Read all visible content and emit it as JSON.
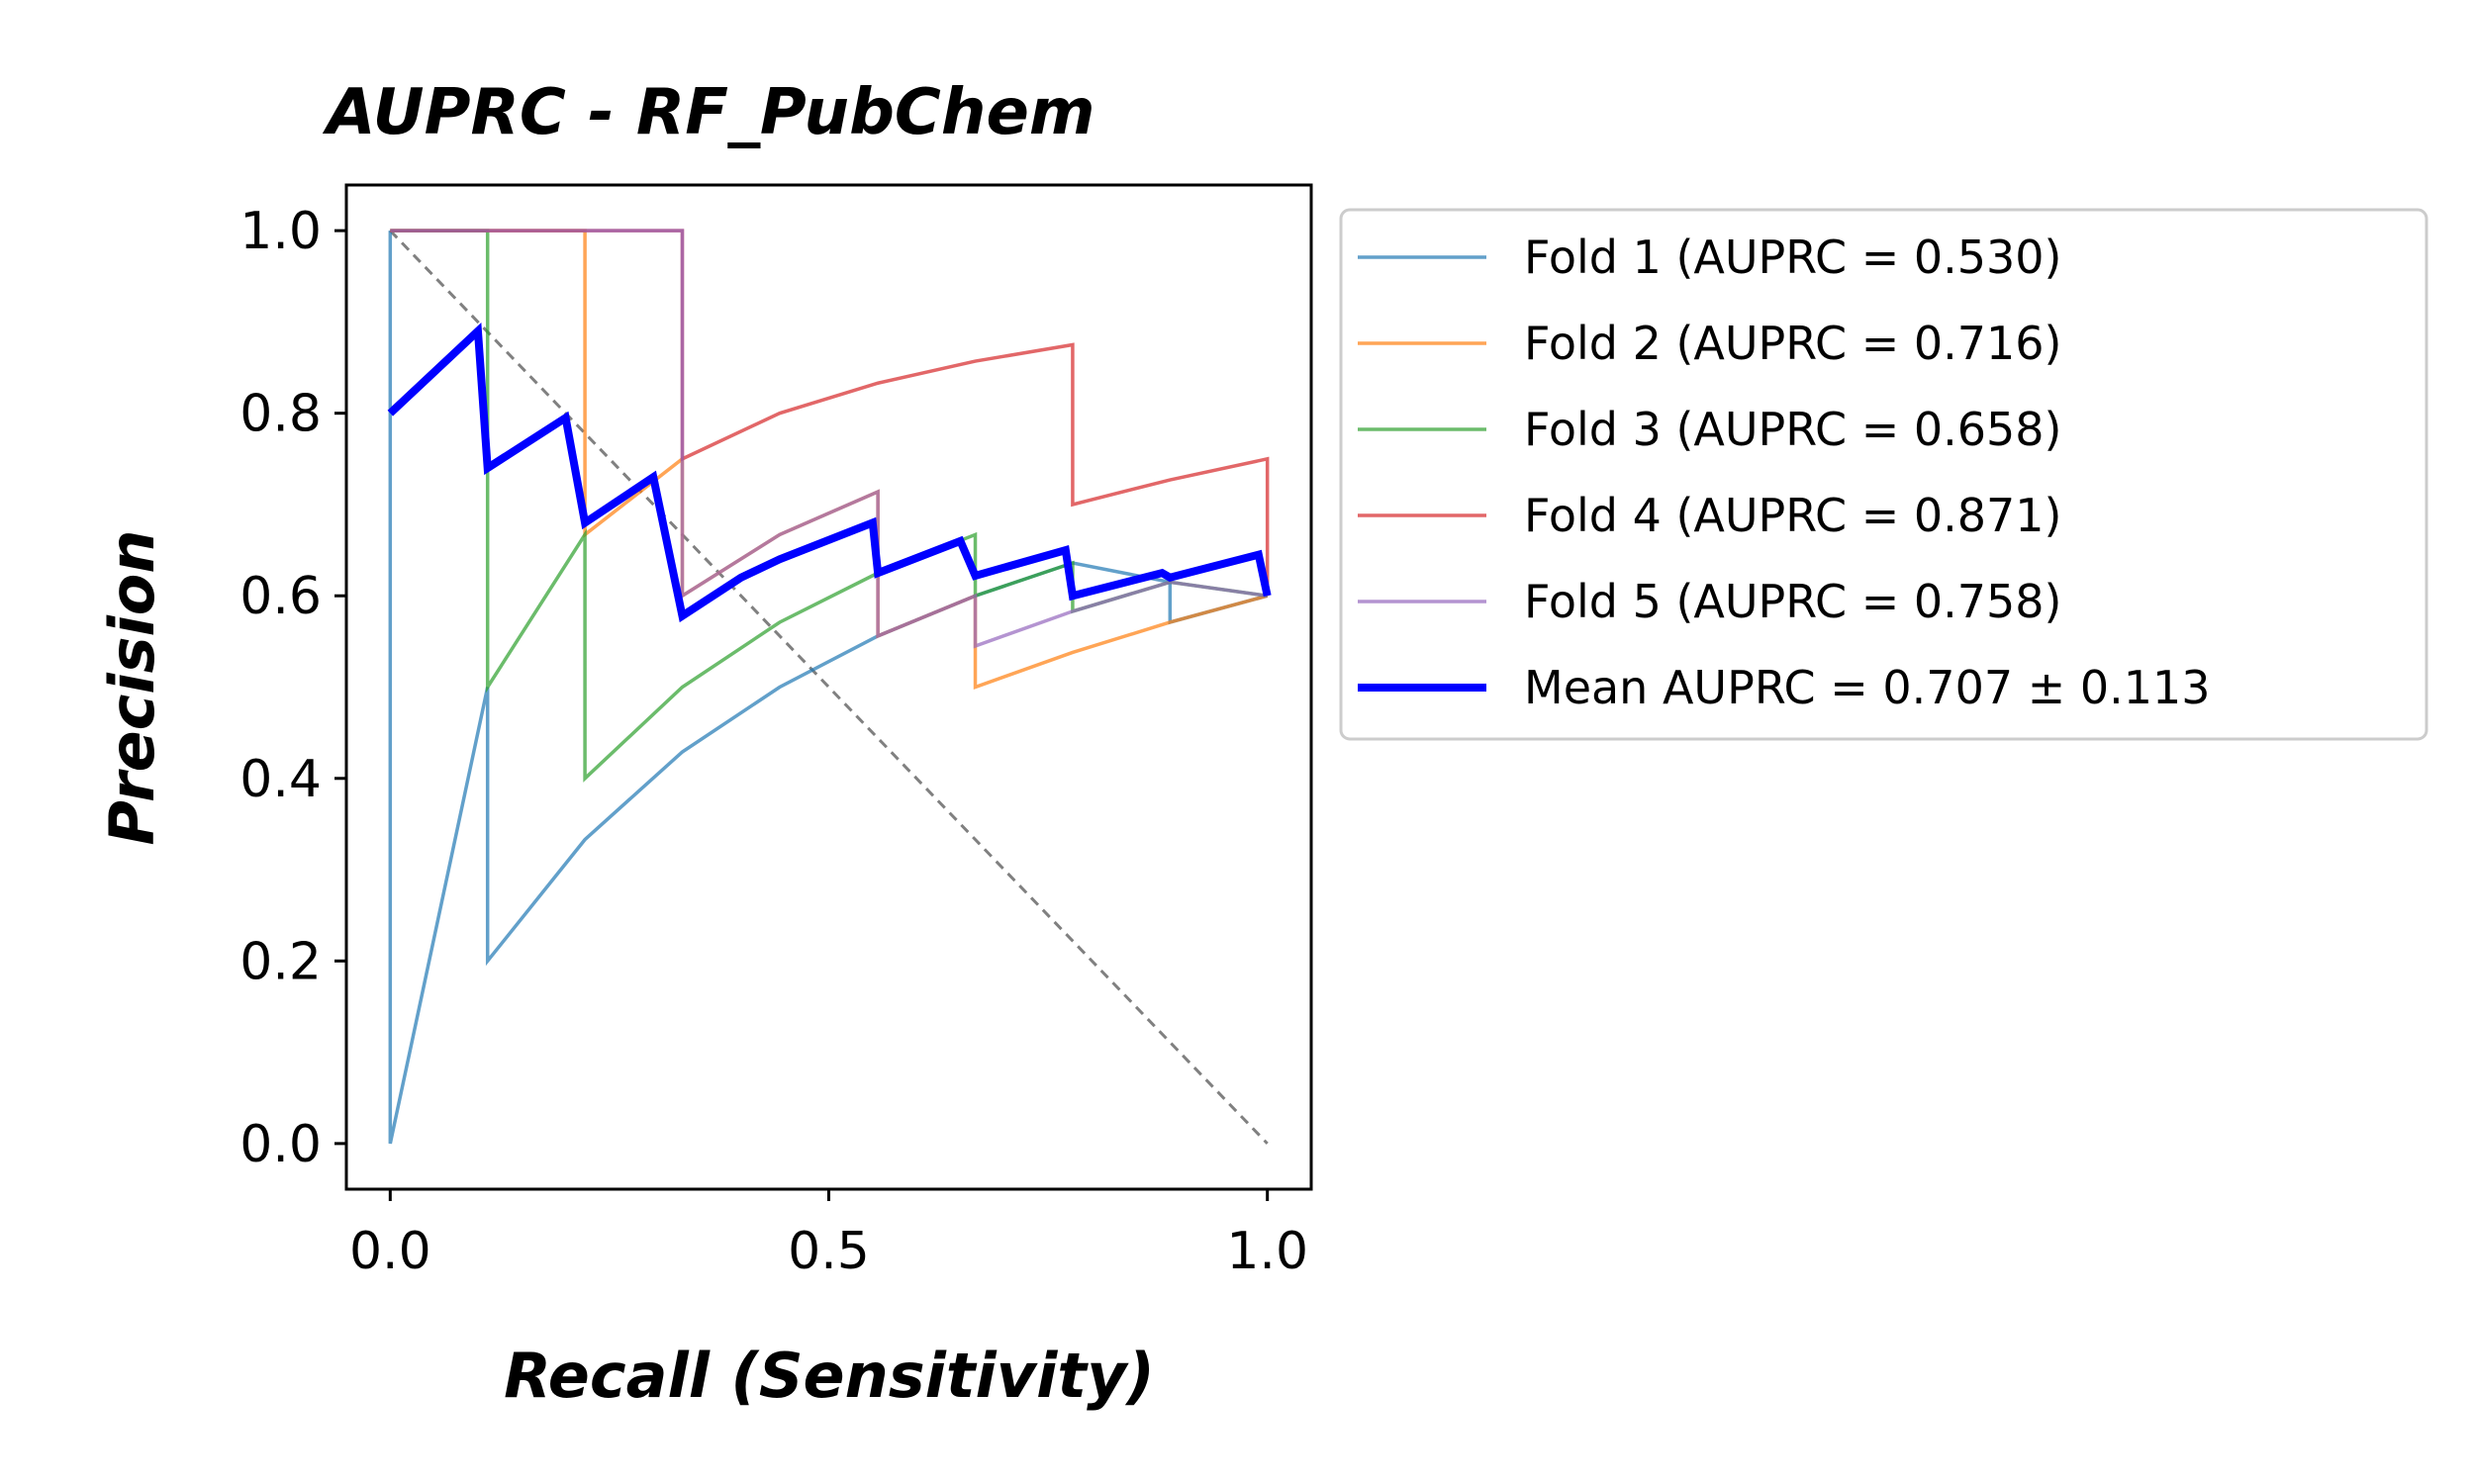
{
  "chart_data": {
    "type": "line",
    "title": "AUPRC - RF_PubChem",
    "xlabel": "Recall (Sensitivity)",
    "ylabel": "Precision",
    "xlim": [
      -0.05,
      1.05
    ],
    "ylim": [
      -0.05,
      1.05
    ],
    "xticks": [
      0.0,
      0.5,
      1.0
    ],
    "xtick_labels": [
      "0.0",
      "0.5",
      "1.0"
    ],
    "yticks": [
      0.0,
      0.2,
      0.4,
      0.6,
      0.8,
      1.0
    ],
    "ytick_labels": [
      "0.0",
      "0.2",
      "0.4",
      "0.6",
      "0.8",
      "1.0"
    ],
    "grid": false,
    "legend_position": "outside-right",
    "diagonal": {
      "x": [
        0,
        1
      ],
      "y": [
        1,
        0
      ],
      "color": "#808080",
      "style": "dashed"
    },
    "series": [
      {
        "name": "Fold 1 (AUPRC = 0.530)",
        "color": "#1f77b4",
        "width": 1,
        "opacity": 0.7,
        "x": [
          0,
          0,
          0.111,
          0.111,
          0.222,
          0.333,
          0.444,
          0.556,
          0.667,
          0.778,
          0.889,
          0.889,
          1.0
        ],
        "y": [
          1.0,
          0.0,
          0.5,
          0.2,
          0.333,
          0.429,
          0.5,
          0.556,
          0.6,
          0.636,
          0.615,
          0.571,
          0.6
        ]
      },
      {
        "name": "Fold 2 (AUPRC = 0.716)",
        "color": "#ff7f0e",
        "width": 1,
        "opacity": 0.7,
        "x": [
          0,
          0.222,
          0.222,
          0.333,
          0.333,
          0.444,
          0.556,
          0.556,
          0.667,
          0.667,
          0.778,
          0.889,
          1.0
        ],
        "y": [
          1.0,
          1.0,
          0.667,
          0.75,
          0.6,
          0.667,
          0.714,
          0.556,
          0.6,
          0.5,
          0.538,
          0.571,
          0.6
        ]
      },
      {
        "name": "Fold 3 (AUPRC = 0.658)",
        "color": "#2ca02c",
        "width": 1,
        "opacity": 0.7,
        "x": [
          0,
          0.111,
          0.111,
          0.222,
          0.222,
          0.333,
          0.444,
          0.556,
          0.667,
          0.667,
          0.778,
          0.778,
          0.889,
          1.0
        ],
        "y": [
          1.0,
          1.0,
          0.5,
          0.667,
          0.4,
          0.5,
          0.571,
          0.625,
          0.667,
          0.6,
          0.636,
          0.583,
          0.615,
          0.6
        ]
      },
      {
        "name": "Fold 4 (AUPRC = 0.871)",
        "color": "#d62728",
        "width": 1,
        "opacity": 0.7,
        "x": [
          0,
          0.333,
          0.333,
          0.444,
          0.556,
          0.667,
          0.778,
          0.778,
          0.889,
          1.0,
          1.0
        ],
        "y": [
          1.0,
          1.0,
          0.75,
          0.8,
          0.833,
          0.857,
          0.875,
          0.7,
          0.727,
          0.75,
          0.6
        ]
      },
      {
        "name": "Fold 5 (AUPRC = 0.758)",
        "color": "#9467bd",
        "width": 1,
        "opacity": 0.7,
        "x": [
          0,
          0.333,
          0.333,
          0.444,
          0.556,
          0.556,
          0.667,
          0.667,
          0.778,
          0.889,
          1.0
        ],
        "y": [
          1.0,
          1.0,
          0.6,
          0.667,
          0.714,
          0.556,
          0.6,
          0.545,
          0.583,
          0.615,
          0.6
        ]
      },
      {
        "name": "Mean AUPRC = 0.707 ± 0.113",
        "color": "#0000ff",
        "width": 2,
        "opacity": 1,
        "x": [
          0,
          0.1,
          0.111,
          0.2,
          0.222,
          0.3,
          0.333,
          0.4,
          0.444,
          0.55,
          0.556,
          0.65,
          0.667,
          0.77,
          0.778,
          0.88,
          0.889,
          0.99,
          1.0
        ],
        "y": [
          0.8,
          0.89,
          0.74,
          0.795,
          0.68,
          0.73,
          0.578,
          0.62,
          0.64,
          0.68,
          0.625,
          0.66,
          0.622,
          0.65,
          0.6,
          0.625,
          0.62,
          0.645,
          0.6
        ]
      }
    ]
  }
}
